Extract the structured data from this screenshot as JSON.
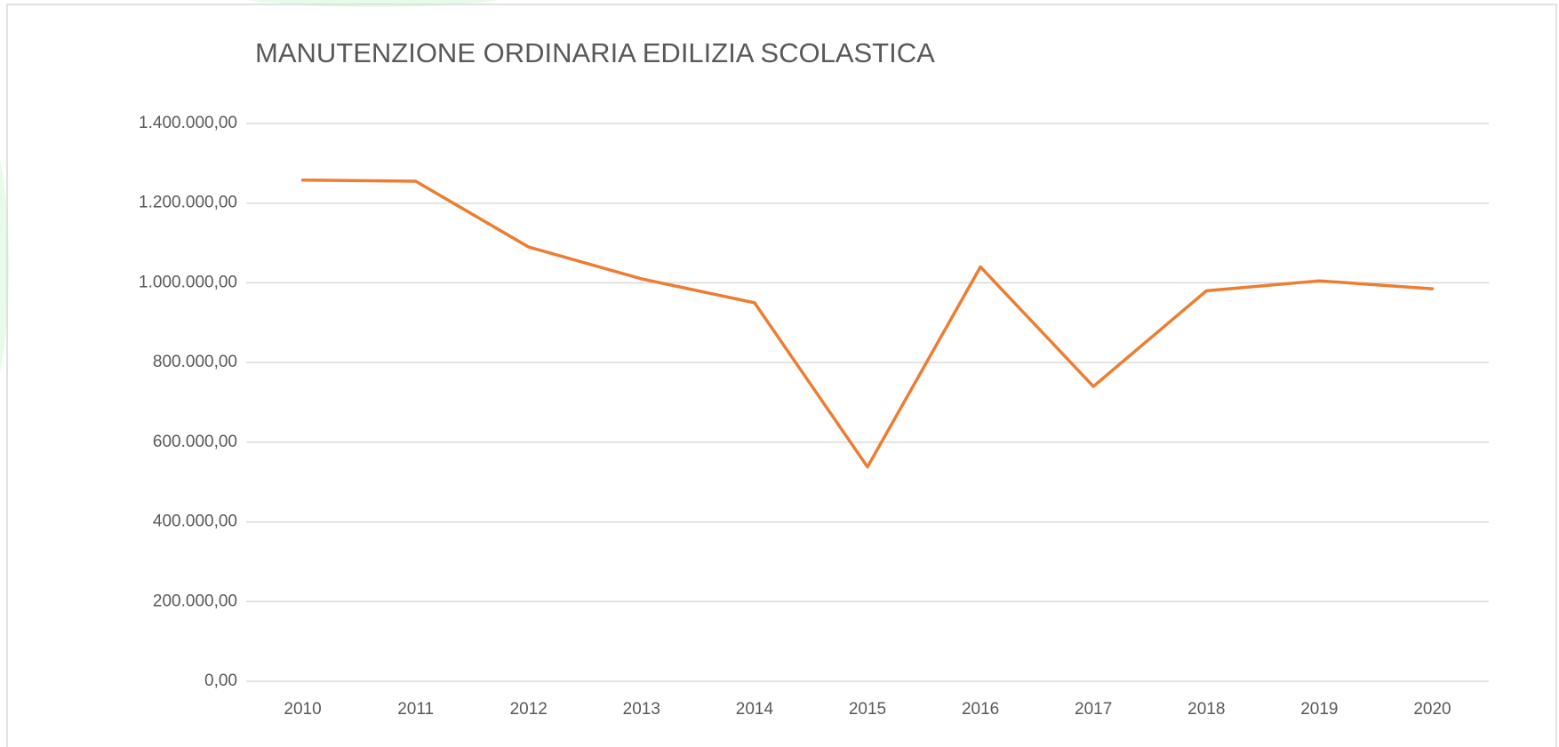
{
  "chart_data": {
    "type": "line",
    "title": "MANUTENZIONE ORDINARIA EDILIZIA SCOLASTICA",
    "categories": [
      "2010",
      "2011",
      "2012",
      "2013",
      "2014",
      "2015",
      "2016",
      "2017",
      "2018",
      "2019",
      "2020"
    ],
    "series": [
      {
        "color": "#ed7d31",
        "values": [
          1258000,
          1255000,
          1090000,
          1010000,
          950000,
          538000,
          1040000,
          740000,
          980000,
          1005000,
          985000
        ]
      }
    ],
    "ylim": [
      0,
      1400000
    ],
    "yticks": [
      {
        "value": 0,
        "label": "0,00"
      },
      {
        "value": 200000,
        "label": "200.000,00"
      },
      {
        "value": 400000,
        "label": "400.000,00"
      },
      {
        "value": 600000,
        "label": "600.000,00"
      },
      {
        "value": 800000,
        "label": "800.000,00"
      },
      {
        "value": 1000000,
        "label": "1.000.000,00"
      },
      {
        "value": 1200000,
        "label": "1.200.000,00"
      },
      {
        "value": 1400000,
        "label": "1.400.000,00"
      }
    ],
    "grid": true
  }
}
